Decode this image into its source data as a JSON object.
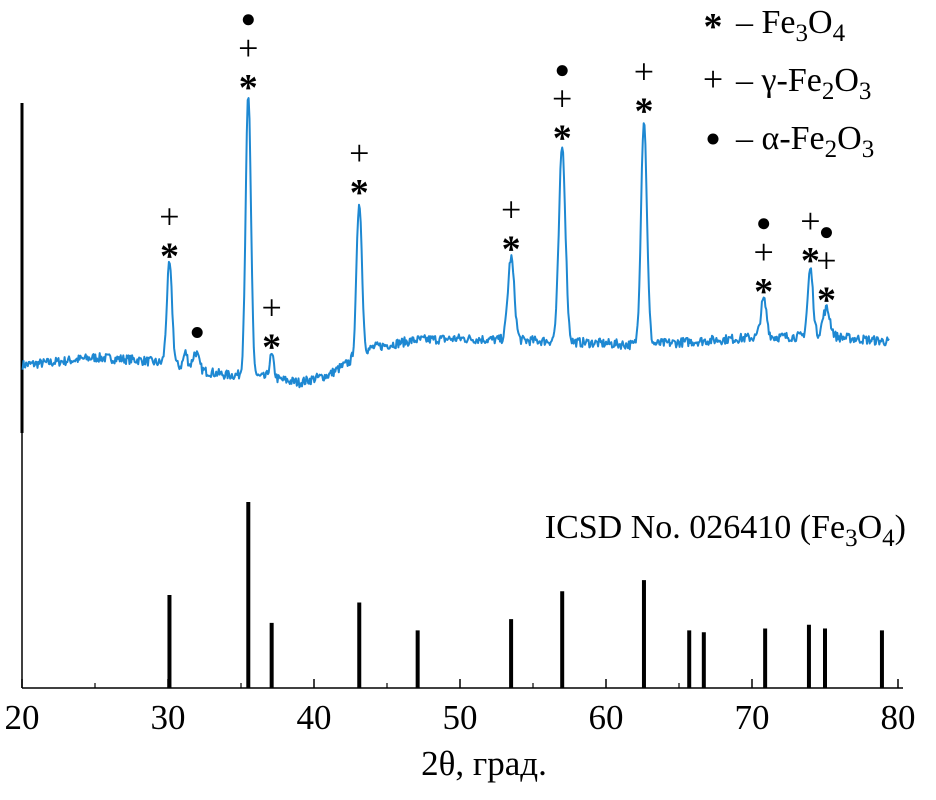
{
  "chart_data": {
    "type": "line",
    "title": "",
    "xlabel": "2θ, град.",
    "ylabel": "",
    "xlim": [
      20,
      80
    ],
    "x_ticks": [
      20,
      30,
      40,
      50,
      60,
      70,
      80
    ],
    "x_tick_labels": [
      "20",
      "30",
      "40",
      "50",
      "60",
      "70",
      "80"
    ],
    "grid": false,
    "legend_position": "top-right",
    "legend": [
      {
        "symbol": "*",
        "text": "– Fe3O4",
        "sym_name": "star",
        "base": "– Fe",
        "sub1": "3",
        "mid": "O",
        "sub2": "4",
        "end": ""
      },
      {
        "symbol": "+",
        "text": "– γ-Fe2O3",
        "sym_name": "plus",
        "base": "– γ-Fe",
        "sub1": "2",
        "mid": "O",
        "sub2": "3",
        "end": ""
      },
      {
        "symbol": "•",
        "text": "– α-Fe2O3",
        "sym_name": "dot",
        "base": "– α-Fe",
        "sub1": "2",
        "mid": "O",
        "sub2": "3",
        "end": ""
      }
    ],
    "series": [
      {
        "kind": "diffractogram",
        "color": "#1e88d2",
        "baseline": [
          [
            20,
            2.0
          ],
          [
            22,
            2.5
          ],
          [
            25,
            3.5
          ],
          [
            28,
            3.0
          ],
          [
            30,
            2.2
          ],
          [
            32,
            1.0
          ],
          [
            34,
            0.0
          ],
          [
            35,
            0.0
          ],
          [
            37,
            -0.6
          ],
          [
            39,
            -1.5
          ],
          [
            41,
            0.0
          ],
          [
            44,
            5.5
          ],
          [
            47,
            7.0
          ],
          [
            50,
            7.3
          ],
          [
            53,
            7.0
          ],
          [
            56,
            6.8
          ],
          [
            60,
            6.3
          ],
          [
            62,
            6.0
          ],
          [
            65,
            6.5
          ],
          [
            70,
            7.5
          ],
          [
            75,
            7.8
          ],
          [
            80,
            6.5
          ]
        ],
        "peaks": [
          {
            "x": 30.1,
            "height": 20.0,
            "width": 0.18
          },
          {
            "x": 31.2,
            "height": 3.0,
            "width": 0.14
          },
          {
            "x": 31.9,
            "height": 3.5,
            "width": 0.2
          },
          {
            "x": 35.5,
            "height": 56.0,
            "width": 0.18
          },
          {
            "x": 37.1,
            "height": 4.5,
            "width": 0.15
          },
          {
            "x": 43.1,
            "height": 31.0,
            "width": 0.18
          },
          {
            "x": 53.5,
            "height": 16.5,
            "width": 0.22
          },
          {
            "x": 57.0,
            "height": 39.0,
            "width": 0.22
          },
          {
            "x": 62.6,
            "height": 45.0,
            "width": 0.2
          },
          {
            "x": 70.8,
            "height": 7.5,
            "width": 0.2
          },
          {
            "x": 74.0,
            "height": 13.5,
            "width": 0.18
          },
          {
            "x": 75.1,
            "height": 5.5,
            "width": 0.25
          }
        ]
      }
    ],
    "peak_markers": [
      {
        "x": 30.1,
        "symbols": [
          "+",
          "*"
        ]
      },
      {
        "x": 32.0,
        "symbols": [
          "•"
        ]
      },
      {
        "x": 35.5,
        "symbols": [
          "•",
          "+",
          "*"
        ]
      },
      {
        "x": 37.1,
        "symbols": [
          "+",
          "*"
        ]
      },
      {
        "x": 43.1,
        "symbols": [
          "+",
          "*"
        ]
      },
      {
        "x": 53.5,
        "symbols": [
          "+",
          "*"
        ]
      },
      {
        "x": 57.0,
        "symbols": [
          "•",
          "+",
          "*"
        ]
      },
      {
        "x": 62.6,
        "symbols": [
          "+",
          "*"
        ]
      },
      {
        "x": 70.8,
        "symbols": [
          "•",
          "+",
          "*"
        ]
      },
      {
        "x": 74.0,
        "symbols": [
          "+",
          "*"
        ]
      },
      {
        "x": 75.1,
        "symbols": [
          "•",
          "+",
          "*"
        ]
      }
    ],
    "reference": {
      "title": "ICSD No. 026410 (Fe3O4)",
      "title_base": "ICSD No. 026410 (Fe",
      "title_sub1": "3",
      "title_mid": "O",
      "title_sub2": "4",
      "title_end": ")",
      "ylim": [
        0,
        100
      ],
      "lines": [
        {
          "x": 30.1,
          "intensity": 50
        },
        {
          "x": 35.5,
          "intensity": 100
        },
        {
          "x": 37.1,
          "intensity": 35
        },
        {
          "x": 43.1,
          "intensity": 46
        },
        {
          "x": 47.1,
          "intensity": 31
        },
        {
          "x": 53.5,
          "intensity": 37
        },
        {
          "x": 57.0,
          "intensity": 52
        },
        {
          "x": 62.6,
          "intensity": 58
        },
        {
          "x": 65.7,
          "intensity": 31
        },
        {
          "x": 66.7,
          "intensity": 30
        },
        {
          "x": 70.9,
          "intensity": 32
        },
        {
          "x": 73.9,
          "intensity": 34
        },
        {
          "x": 75.0,
          "intensity": 32
        },
        {
          "x": 78.9,
          "intensity": 31
        }
      ]
    }
  }
}
